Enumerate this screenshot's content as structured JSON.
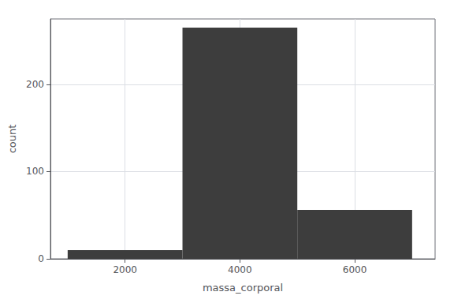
{
  "chart_data": {
    "type": "histogram",
    "xlabel": "massa_corporal",
    "ylabel": "count",
    "bins": [
      1000,
      3000,
      5000,
      7000
    ],
    "counts": [
      10,
      265,
      56
    ],
    "color": "#3d3d3d",
    "xlim": [
      700,
      7400
    ],
    "ylim": [
      0,
      275
    ],
    "xticks": [
      2000,
      4000,
      6000
    ],
    "yticks": [
      0,
      100,
      200
    ],
    "grid": true
  }
}
